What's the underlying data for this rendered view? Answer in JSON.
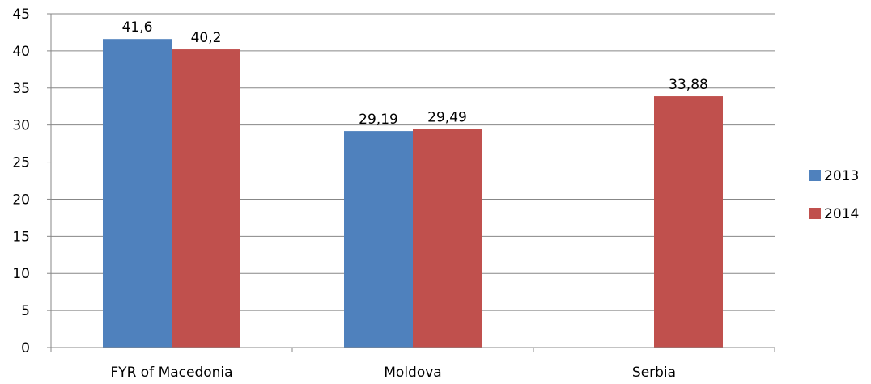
{
  "chart_data": {
    "type": "bar",
    "title": "",
    "xlabel": "",
    "ylabel": "",
    "categories": [
      "FYR of Macedonia",
      "Moldova",
      "Serbia"
    ],
    "series": [
      {
        "name": "2013",
        "color": "#4F81BD",
        "values": [
          41.6,
          29.19,
          null
        ],
        "labels": [
          "41,6",
          "29,19",
          ""
        ]
      },
      {
        "name": "2014",
        "color": "#C0504D",
        "values": [
          40.2,
          29.49,
          33.88
        ],
        "labels": [
          "40,2",
          "29,49",
          "33,88"
        ]
      }
    ],
    "ylim": [
      0,
      45
    ],
    "yticks": [
      0,
      5,
      10,
      15,
      20,
      25,
      30,
      35,
      40,
      45
    ],
    "grid": true,
    "legend_position": "right"
  }
}
